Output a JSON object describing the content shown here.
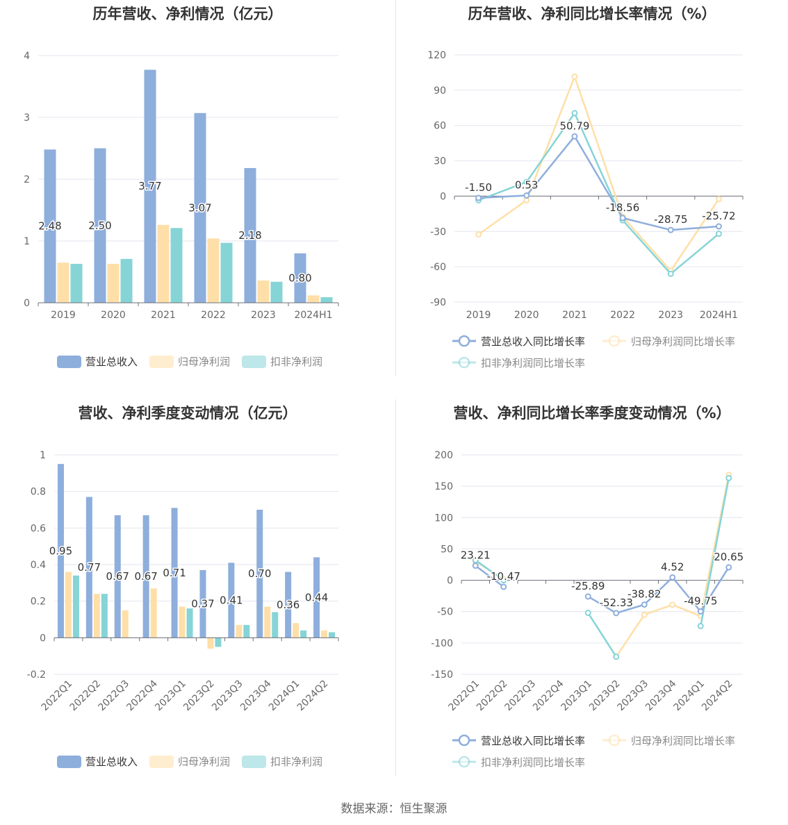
{
  "source_text": "数据来源：恒生聚源",
  "colors": {
    "blue": "#8eaedc",
    "yellow": "#fedfa8",
    "teal": "#86d4d6",
    "grid": "#e3e6ef",
    "axis": "#6e7079",
    "text": "#333333",
    "subtext": "#666666"
  },
  "chart_data": [
    {
      "id": "c1",
      "type": "bar",
      "title": "历年营收、净利情况（亿元）",
      "categories": [
        "2019",
        "2020",
        "2021",
        "2022",
        "2023",
        "2024H1"
      ],
      "ylim": [
        0,
        4
      ],
      "yticks": [
        0,
        1,
        2,
        3,
        4
      ],
      "series": [
        {
          "name": "营业总收入",
          "values": [
            2.48,
            2.5,
            3.77,
            3.07,
            2.18,
            0.8
          ],
          "labels": [
            "2.48",
            "2.50",
            "3.77",
            "3.07",
            "2.18",
            "0.80"
          ]
        },
        {
          "name": "归母净利润",
          "values": [
            0.65,
            0.63,
            1.26,
            1.04,
            0.36,
            0.12
          ]
        },
        {
          "name": "扣非净利润",
          "values": [
            0.63,
            0.71,
            1.21,
            0.97,
            0.34,
            0.09
          ]
        }
      ],
      "legend_position": "bottom",
      "grid": true
    },
    {
      "id": "c2",
      "type": "line",
      "title": "历年营收、净利同比增长率情况（%）",
      "categories": [
        "2019",
        "2020",
        "2021",
        "2022",
        "2023",
        "2024H1"
      ],
      "ylim": [
        -90,
        120
      ],
      "yticks": [
        -90,
        -60,
        -30,
        0,
        30,
        60,
        90,
        120
      ],
      "series": [
        {
          "name": "营业总收入同比增长率",
          "values": [
            -1.5,
            0.53,
            50.79,
            -18.56,
            -28.75,
            -25.72
          ],
          "labels": [
            "-1.50",
            "0.53",
            "50.79",
            "-18.56",
            "-28.75",
            "-25.72"
          ]
        },
        {
          "name": "归母净利润同比增长率",
          "values": [
            -32.5,
            -3.5,
            101.5,
            -17.5,
            -63.5,
            -2.5
          ]
        },
        {
          "name": "扣非净利润同比增长率",
          "values": [
            -3.5,
            12.0,
            70.5,
            -20.5,
            -66.0,
            -32.0
          ]
        }
      ],
      "legend_position": "bottom",
      "grid": true
    },
    {
      "id": "c3",
      "type": "bar",
      "title": "营收、净利季度变动情况（亿元）",
      "categories": [
        "2022Q1",
        "2022Q2",
        "2022Q3",
        "2022Q4",
        "2023Q1",
        "2023Q2",
        "2023Q3",
        "2023Q4",
        "2024Q1",
        "2024Q2"
      ],
      "ylim": [
        -0.2,
        1
      ],
      "yticks": [
        -0.2,
        0,
        0.2,
        0.4,
        0.6,
        0.8,
        1
      ],
      "series": [
        {
          "name": "营业总收入",
          "values": [
            0.95,
            0.77,
            0.67,
            0.67,
            0.71,
            0.37,
            0.41,
            0.7,
            0.36,
            0.44
          ],
          "labels": [
            "0.95",
            "0.77",
            "0.67",
            "0.67",
            "0.71",
            "0.37",
            "0.41",
            "0.70",
            "0.36",
            "0.44"
          ]
        },
        {
          "name": "归母净利润",
          "values": [
            0.36,
            0.24,
            0.15,
            0.27,
            0.17,
            -0.06,
            0.07,
            0.17,
            0.08,
            0.04
          ]
        },
        {
          "name": "扣非净利润",
          "values": [
            0.34,
            0.24,
            null,
            null,
            0.16,
            -0.05,
            0.07,
            0.14,
            0.04,
            0.03
          ]
        }
      ],
      "legend_position": "bottom",
      "grid": true
    },
    {
      "id": "c4",
      "type": "line",
      "title": "营收、净利同比增长率季度变动情况（%）",
      "categories": [
        "2022Q1",
        "2022Q2",
        "2022Q3",
        "2022Q4",
        "2023Q1",
        "2023Q2",
        "2023Q3",
        "2023Q4",
        "2024Q1",
        "2024Q2"
      ],
      "ylim": [
        -150,
        200
      ],
      "yticks": [
        -150,
        -100,
        -50,
        0,
        50,
        100,
        150,
        200
      ],
      "series": [
        {
          "name": "营业总收入同比增长率",
          "values": [
            23.21,
            -10.47,
            null,
            null,
            -25.89,
            -52.33,
            -38.82,
            4.52,
            -49.75,
            20.65
          ],
          "labels": [
            "23.21",
            "-10.47",
            "",
            "",
            "-25.89",
            "-52.33",
            "-38.82",
            "4.52",
            "-49.75",
            "20.65"
          ]
        },
        {
          "name": "归母净利润同比增长率",
          "values": [
            30.0,
            2.0,
            null,
            null,
            null,
            -122.0,
            -55.0,
            -39.0,
            -57.0,
            168.0
          ]
        },
        {
          "name": "扣非净利润同比增长率",
          "values": [
            32.0,
            0.0,
            null,
            null,
            -52.0,
            -122.0,
            null,
            null,
            -73.0,
            163.0
          ]
        }
      ],
      "legend_position": "bottom",
      "grid": true
    }
  ]
}
